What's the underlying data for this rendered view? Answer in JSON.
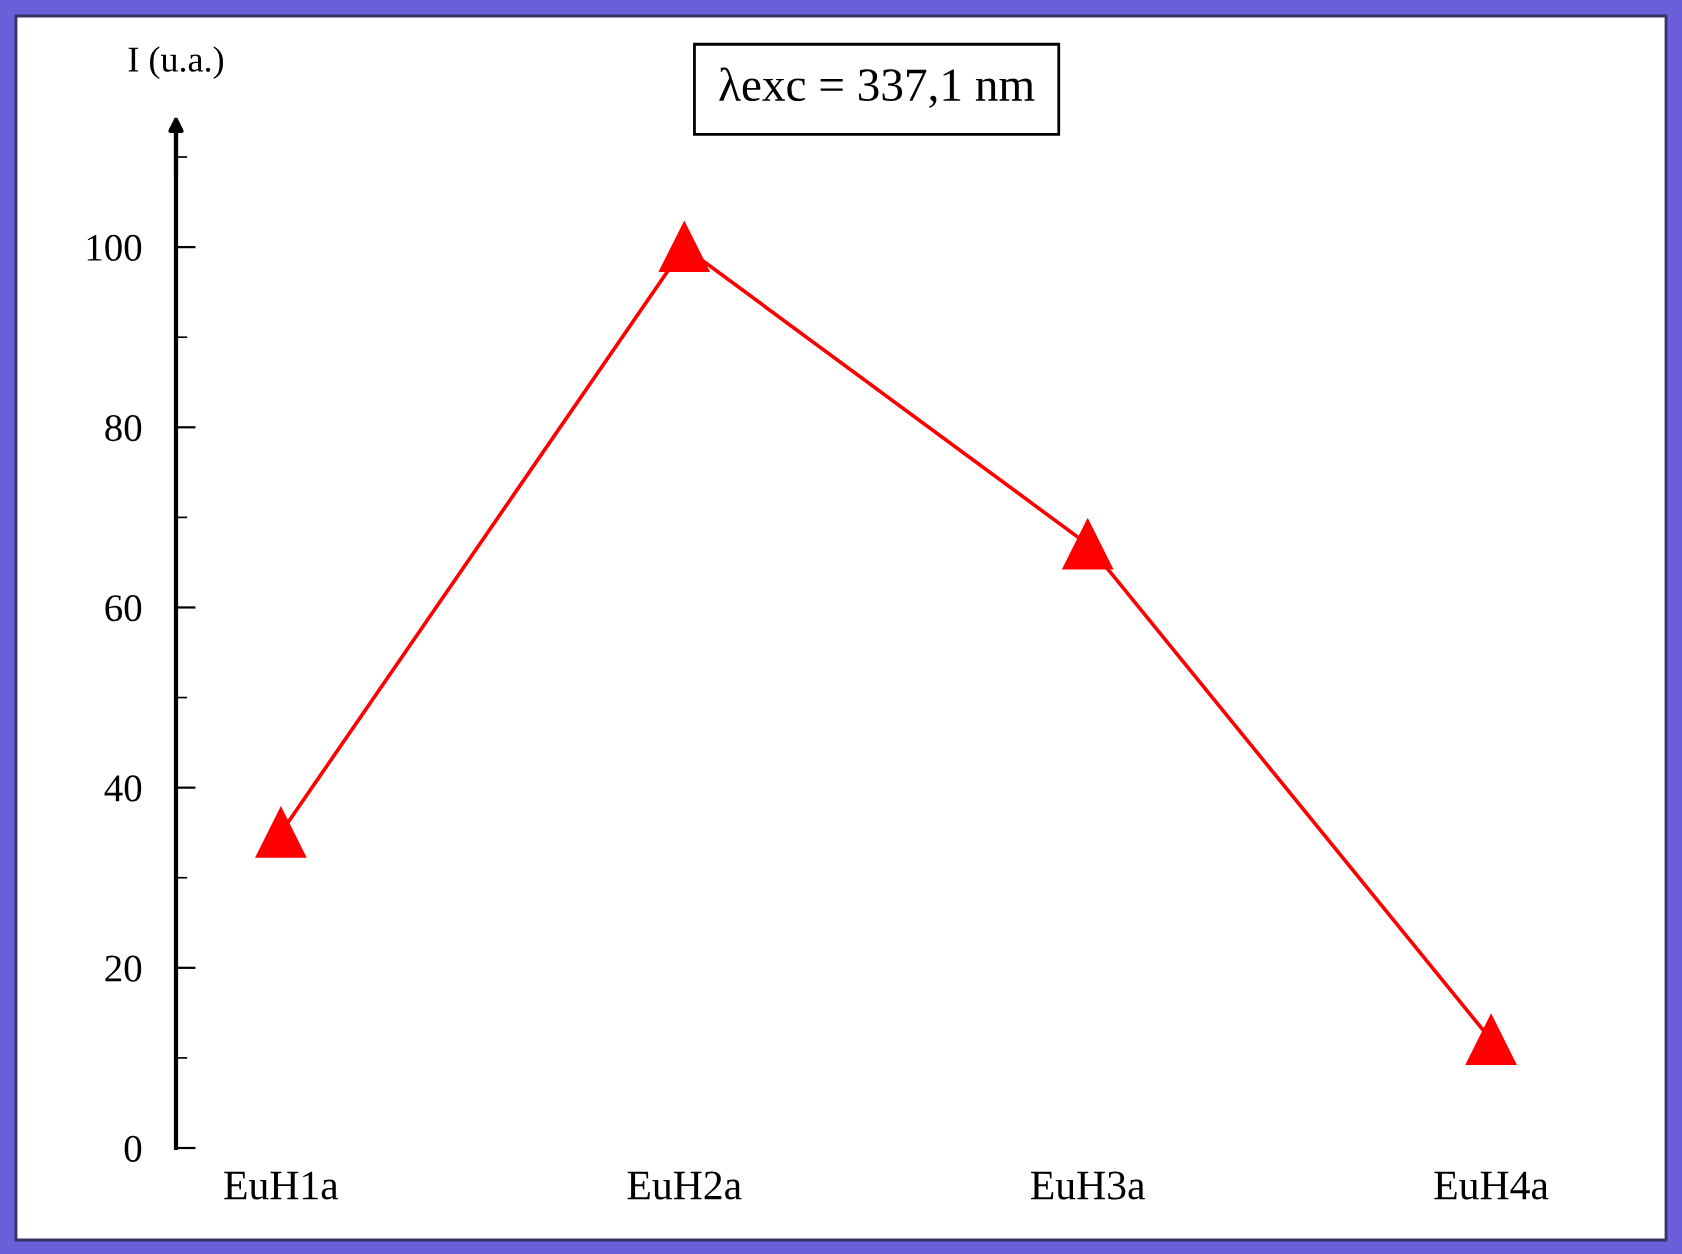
{
  "chart_data": {
    "type": "line",
    "ylabel": "I (u.a.)",
    "annotations": [
      "λexc = 337,1 nm"
    ],
    "categories": [
      "EuH1a",
      "EuH2a",
      "EuH3a",
      "EuH4a"
    ],
    "series": [
      {
        "color": "#ff0000",
        "values": [
          35,
          100,
          67,
          12
        ]
      }
    ],
    "ylim": [
      0,
      113
    ],
    "yticks": [
      0,
      20,
      40,
      60,
      80,
      100
    ],
    "marker": "triangle",
    "line_style": "solid",
    "grid": false,
    "legend": false
  }
}
